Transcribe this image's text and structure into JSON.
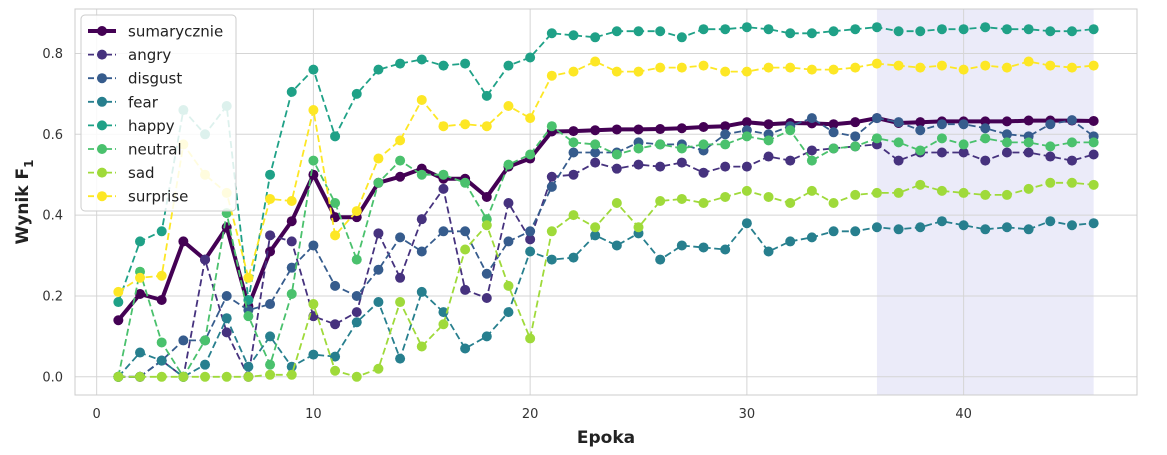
{
  "chart_data": {
    "type": "line",
    "title": "",
    "xlabel": "Epoka",
    "ylabel_main": "Wynik F",
    "ylabel_sub": "1",
    "xlim": [
      -1,
      48
    ],
    "ylim": [
      -0.045,
      0.91
    ],
    "xticks": [
      0,
      10,
      20,
      30,
      40
    ],
    "yticks": [
      0.0,
      0.2,
      0.4,
      0.6,
      0.8
    ],
    "ytick_labels": [
      "0.0",
      "0.2",
      "0.4",
      "0.6",
      "0.8"
    ],
    "grid": true,
    "legend_position": "top-left",
    "highlight_span": {
      "from": 36,
      "to": 46,
      "color": "#e8e8f8"
    },
    "x": [
      1,
      2,
      3,
      4,
      5,
      6,
      7,
      8,
      9,
      10,
      11,
      12,
      13,
      14,
      15,
      16,
      17,
      18,
      19,
      20,
      21,
      22,
      23,
      24,
      25,
      26,
      27,
      28,
      29,
      30,
      31,
      32,
      33,
      34,
      35,
      36,
      37,
      38,
      39,
      40,
      41,
      42,
      43,
      44,
      45,
      46
    ],
    "series": [
      {
        "name": "sumarycznie",
        "color": "#440154",
        "style": "solid",
        "bold": true,
        "values": [
          0.14,
          0.205,
          0.19,
          0.335,
          0.29,
          0.37,
          0.175,
          0.31,
          0.385,
          0.5,
          0.395,
          0.395,
          0.48,
          0.495,
          0.515,
          0.49,
          0.49,
          0.445,
          0.52,
          0.54,
          0.607,
          0.608,
          0.61,
          0.612,
          0.612,
          0.613,
          0.615,
          0.618,
          0.62,
          0.63,
          0.625,
          0.628,
          0.627,
          0.625,
          0.63,
          0.64,
          0.628,
          0.63,
          0.632,
          0.632,
          0.632,
          0.632,
          0.634,
          0.634,
          0.634,
          0.633
        ]
      },
      {
        "name": "angry",
        "color": "#46327e",
        "style": "dashed",
        "bold": false,
        "values": [
          0.0,
          0.0,
          0.04,
          0.0,
          0.29,
          0.11,
          0.0,
          0.35,
          0.335,
          0.15,
          0.13,
          0.16,
          0.355,
          0.245,
          0.39,
          0.465,
          0.215,
          0.195,
          0.43,
          0.34,
          0.495,
          0.5,
          0.53,
          0.515,
          0.525,
          0.52,
          0.53,
          0.505,
          0.52,
          0.52,
          0.545,
          0.535,
          0.56,
          0.565,
          0.57,
          0.575,
          0.535,
          0.555,
          0.555,
          0.555,
          0.535,
          0.555,
          0.555,
          0.545,
          0.535,
          0.55
        ]
      },
      {
        "name": "disgust",
        "color": "#365c8d",
        "style": "dashed",
        "bold": false,
        "values": [
          0.0,
          0.0,
          0.04,
          0.09,
          0.09,
          0.2,
          0.165,
          0.18,
          0.27,
          0.325,
          0.225,
          0.2,
          0.265,
          0.345,
          0.31,
          0.36,
          0.36,
          0.255,
          0.335,
          0.36,
          0.47,
          0.555,
          0.555,
          0.555,
          0.58,
          0.575,
          0.575,
          0.56,
          0.6,
          0.61,
          0.6,
          0.62,
          0.64,
          0.605,
          0.595,
          0.64,
          0.63,
          0.61,
          0.625,
          0.625,
          0.615,
          0.6,
          0.595,
          0.625,
          0.635,
          0.595
        ]
      },
      {
        "name": "fear",
        "color": "#277f8e",
        "style": "dashed",
        "bold": false,
        "values": [
          0.0,
          0.06,
          0.04,
          0.0,
          0.03,
          0.145,
          0.025,
          0.1,
          0.025,
          0.055,
          0.05,
          0.135,
          0.185,
          0.045,
          0.21,
          0.16,
          0.07,
          0.1,
          0.16,
          0.31,
          0.29,
          0.295,
          0.35,
          0.325,
          0.355,
          0.29,
          0.325,
          0.32,
          0.315,
          0.38,
          0.31,
          0.335,
          0.345,
          0.36,
          0.36,
          0.37,
          0.365,
          0.37,
          0.385,
          0.375,
          0.365,
          0.37,
          0.365,
          0.385,
          0.375,
          0.38
        ]
      },
      {
        "name": "happy",
        "color": "#1fa187",
        "style": "dashed",
        "bold": false,
        "values": [
          0.185,
          0.335,
          0.36,
          0.66,
          0.6,
          0.67,
          0.19,
          0.5,
          0.705,
          0.76,
          0.595,
          0.7,
          0.76,
          0.775,
          0.785,
          0.77,
          0.775,
          0.695,
          0.77,
          0.79,
          0.85,
          0.845,
          0.84,
          0.855,
          0.855,
          0.855,
          0.84,
          0.86,
          0.86,
          0.865,
          0.86,
          0.85,
          0.85,
          0.855,
          0.86,
          0.865,
          0.855,
          0.855,
          0.86,
          0.86,
          0.865,
          0.86,
          0.86,
          0.855,
          0.855,
          0.86
        ]
      },
      {
        "name": "neutral",
        "color": "#4ac16d",
        "style": "dashed",
        "bold": false,
        "values": [
          0.0,
          0.26,
          0.085,
          0.0,
          0.09,
          0.405,
          0.15,
          0.03,
          0.205,
          0.535,
          0.43,
          0.29,
          0.48,
          0.535,
          0.5,
          0.5,
          0.48,
          0.39,
          0.525,
          0.55,
          0.62,
          0.58,
          0.575,
          0.55,
          0.565,
          0.575,
          0.565,
          0.575,
          0.575,
          0.595,
          0.585,
          0.61,
          0.535,
          0.565,
          0.57,
          0.59,
          0.58,
          0.56,
          0.59,
          0.575,
          0.59,
          0.58,
          0.58,
          0.57,
          0.58,
          0.58
        ]
      },
      {
        "name": "sad",
        "color": "#9fda3a",
        "style": "dashed",
        "bold": false,
        "values": [
          0.0,
          0.0,
          0.0,
          0.0,
          0.0,
          0.0,
          0.0,
          0.005,
          0.005,
          0.18,
          0.015,
          0.0,
          0.02,
          0.185,
          0.075,
          0.13,
          0.315,
          0.375,
          0.225,
          0.095,
          0.36,
          0.4,
          0.37,
          0.43,
          0.37,
          0.435,
          0.44,
          0.43,
          0.445,
          0.46,
          0.445,
          0.43,
          0.46,
          0.43,
          0.45,
          0.455,
          0.455,
          0.475,
          0.46,
          0.455,
          0.45,
          0.45,
          0.465,
          0.48,
          0.48,
          0.475
        ]
      },
      {
        "name": "surprise",
        "color": "#fde725",
        "style": "dashed",
        "bold": false,
        "values": [
          0.21,
          0.245,
          0.25,
          0.575,
          0.5,
          0.455,
          0.245,
          0.44,
          0.435,
          0.66,
          0.35,
          0.41,
          0.54,
          0.585,
          0.685,
          0.62,
          0.625,
          0.62,
          0.67,
          0.64,
          0.745,
          0.755,
          0.78,
          0.755,
          0.755,
          0.765,
          0.765,
          0.77,
          0.755,
          0.755,
          0.765,
          0.765,
          0.76,
          0.76,
          0.765,
          0.775,
          0.77,
          0.765,
          0.77,
          0.76,
          0.77,
          0.765,
          0.78,
          0.77,
          0.765,
          0.77
        ]
      }
    ]
  }
}
